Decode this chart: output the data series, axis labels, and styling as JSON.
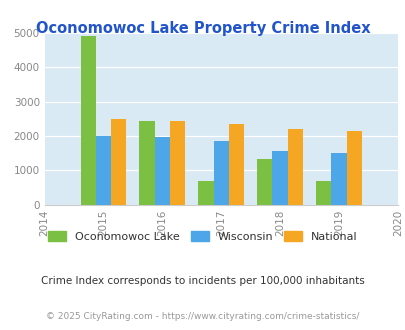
{
  "title": "Oconomowoc Lake Property Crime Index",
  "years": [
    2015,
    2016,
    2017,
    2018,
    2019
  ],
  "x_ticks": [
    2014,
    2015,
    2016,
    2017,
    2018,
    2019,
    2020
  ],
  "oconomowoc": [
    4900,
    2450,
    680,
    1340,
    690
  ],
  "wisconsin": [
    1990,
    1960,
    1840,
    1560,
    1490
  ],
  "national": [
    2480,
    2450,
    2360,
    2190,
    2130
  ],
  "oconomowoc_color": "#7bc043",
  "wisconsin_color": "#4da6e8",
  "national_color": "#f5a623",
  "bg_color": "#daeaf5",
  "ylim": [
    0,
    5000
  ],
  "yticks": [
    0,
    1000,
    2000,
    3000,
    4000,
    5000
  ],
  "title_color": "#2255cc",
  "legend_labels": [
    "Oconomowoc Lake",
    "Wisconsin",
    "National"
  ],
  "subtitle": "Crime Index corresponds to incidents per 100,000 inhabitants",
  "footer": "© 2025 CityRating.com - https://www.cityrating.com/crime-statistics/",
  "subtitle_color": "#333333",
  "footer_color": "#999999",
  "bar_width": 0.26
}
